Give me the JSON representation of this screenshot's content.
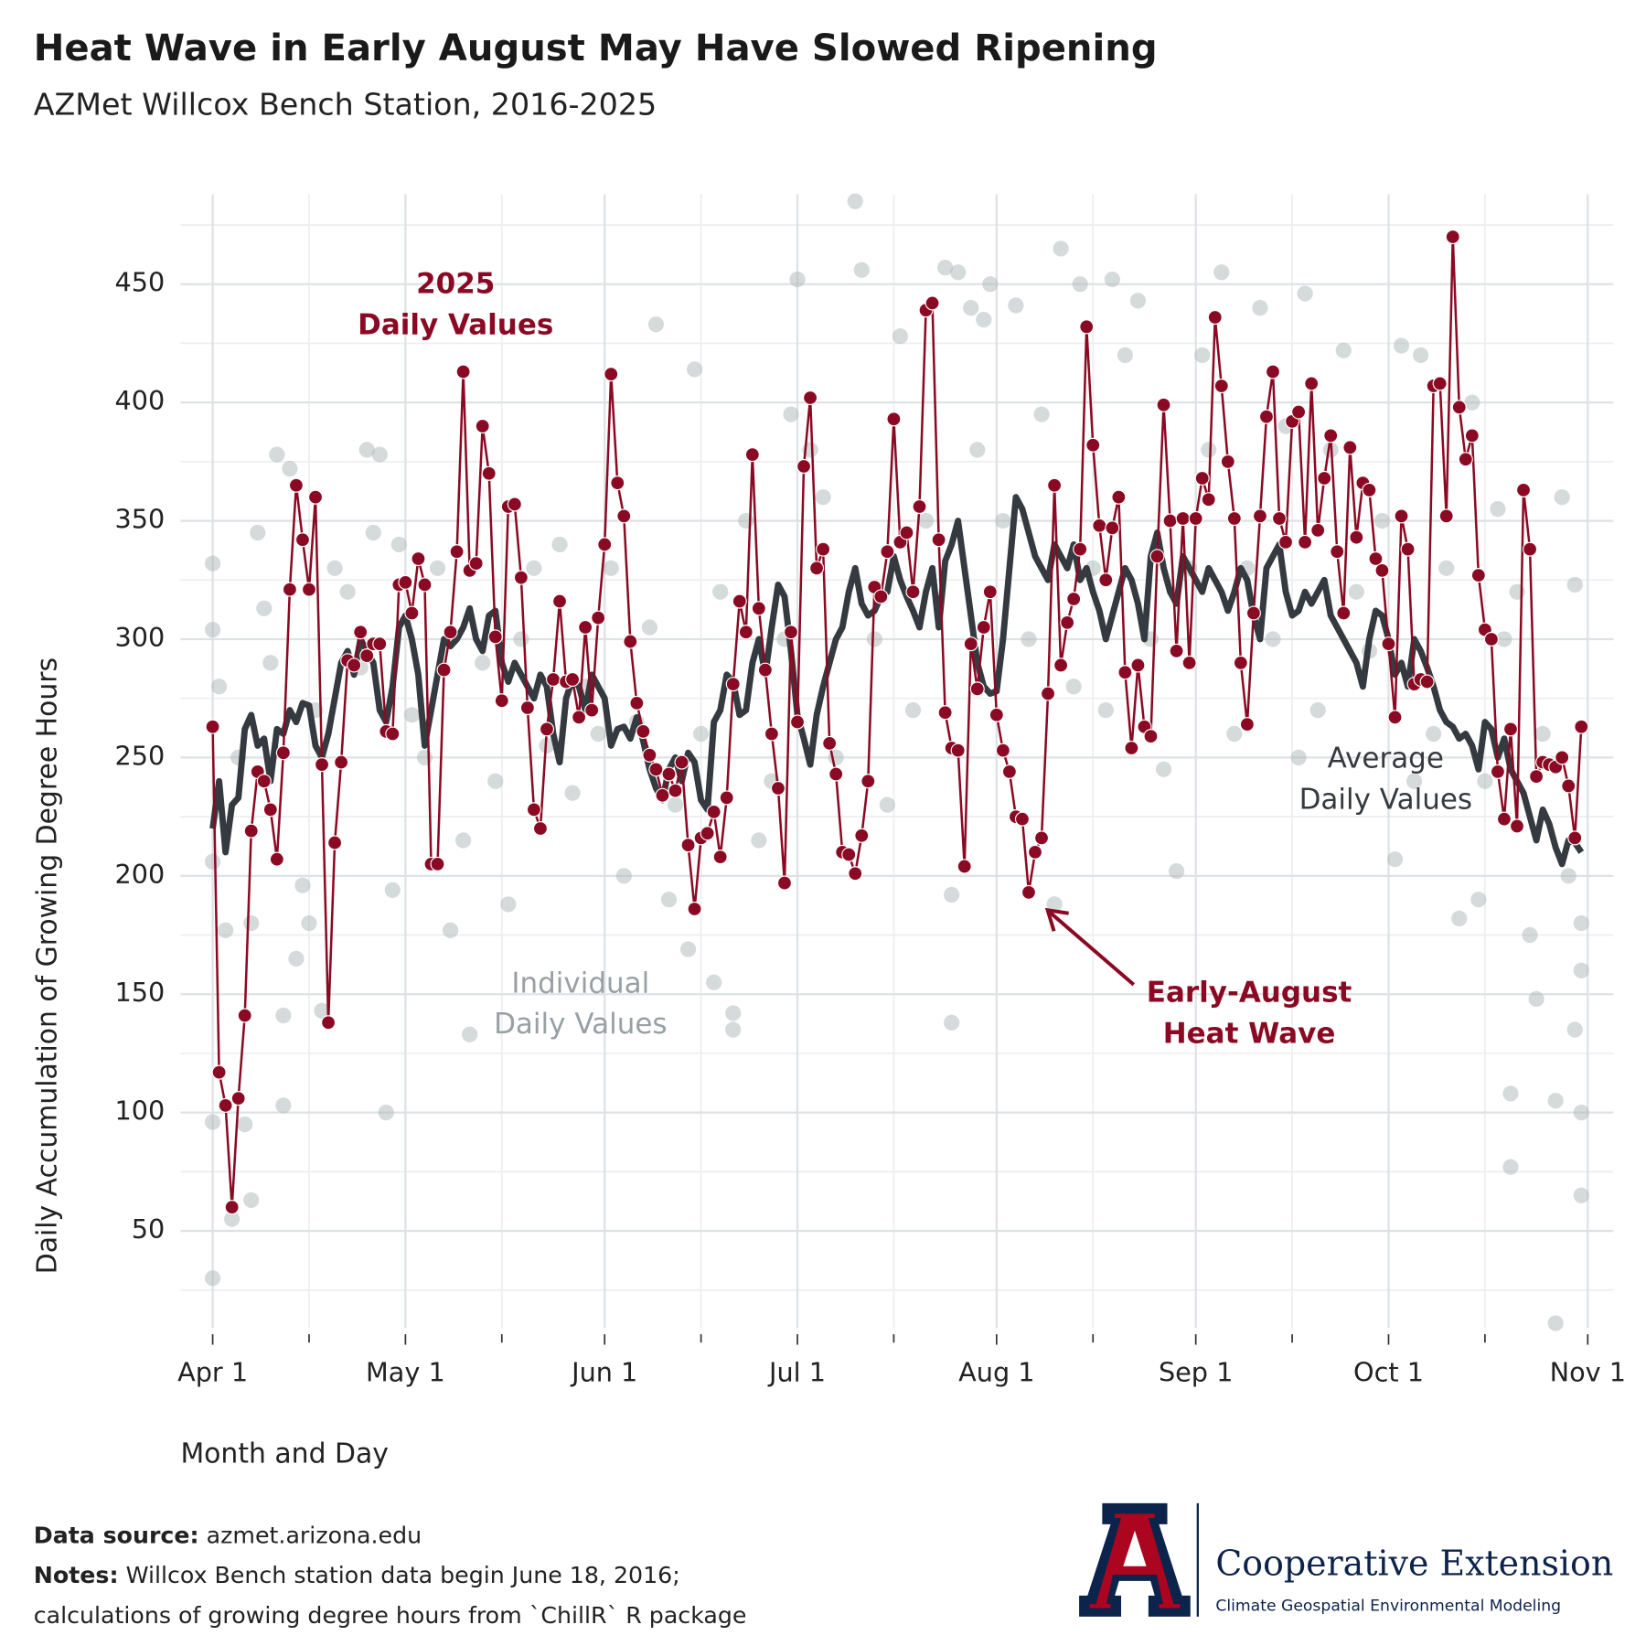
{
  "chart_data": {
    "type": "line",
    "title": "Heat Wave in Early August May Have Slowed Ripening",
    "subtitle": "AZMet Willcox Bench Station, 2016-2025",
    "x_label": "Month and Day",
    "y_label": "Daily Accumulation of Growing Degree Hours",
    "xlim": [
      -5,
      218
    ],
    "ylim": [
      9,
      488
    ],
    "xticks": [
      {
        "value": 0,
        "label": "Apr 1"
      },
      {
        "value": 30,
        "label": "May 1"
      },
      {
        "value": 61,
        "label": "Jun 1"
      },
      {
        "value": 91,
        "label": "Jul 1"
      },
      {
        "value": 122,
        "label": "Aug 1"
      },
      {
        "value": 153,
        "label": "Sep 1"
      },
      {
        "value": 183,
        "label": "Oct 1"
      },
      {
        "value": 214,
        "label": "Nov 1"
      }
    ],
    "xminorticks": [
      15,
      45,
      76,
      106,
      137,
      168,
      198
    ],
    "yticks": [
      50,
      100,
      150,
      200,
      250,
      300,
      350,
      400,
      450
    ],
    "yminorticks": [
      25,
      75,
      125,
      175,
      225,
      275,
      325,
      375,
      425,
      475
    ],
    "grid": true,
    "x": [
      0,
      1,
      2,
      3,
      4,
      5,
      6,
      7,
      8,
      9,
      10,
      11,
      12,
      13,
      14,
      15,
      16,
      17,
      18,
      19,
      20,
      21,
      22,
      23,
      24,
      25,
      26,
      27,
      28,
      29,
      30,
      31,
      32,
      33,
      34,
      35,
      36,
      37,
      38,
      39,
      40,
      41,
      42,
      43,
      44,
      45,
      46,
      47,
      48,
      49,
      50,
      51,
      52,
      53,
      54,
      55,
      56,
      57,
      58,
      59,
      60,
      61,
      62,
      63,
      64,
      65,
      66,
      67,
      68,
      69,
      70,
      71,
      72,
      73,
      74,
      75,
      76,
      77,
      78,
      79,
      80,
      81,
      82,
      83,
      84,
      85,
      86,
      87,
      88,
      89,
      90,
      91,
      92,
      93,
      94,
      95,
      96,
      97,
      98,
      99,
      100,
      101,
      102,
      103,
      104,
      105,
      106,
      107,
      108,
      109,
      110,
      111,
      112,
      113,
      114,
      115,
      116,
      117,
      118,
      119,
      120,
      121,
      122,
      123,
      124,
      125,
      126,
      127,
      128,
      129,
      130,
      131,
      132,
      133,
      134,
      135,
      136,
      137,
      138,
      139,
      140,
      141,
      142,
      143,
      144,
      145,
      146,
      147,
      148,
      149,
      150,
      151,
      152,
      153,
      154,
      155,
      156,
      157,
      158,
      159,
      160,
      161,
      162,
      163,
      164,
      165,
      166,
      167,
      168,
      169,
      170,
      171,
      172,
      173,
      174,
      175,
      176,
      177,
      178,
      179,
      180,
      181,
      182,
      183,
      184,
      185,
      186,
      187,
      188,
      189,
      190,
      191,
      192,
      193,
      194,
      195,
      196,
      197,
      198,
      199,
      200,
      201,
      202,
      203,
      204,
      205,
      206,
      207,
      208,
      209,
      210,
      211,
      212,
      213
    ],
    "series": [
      {
        "type": "scatter",
        "label": [
          "Individual",
          "Daily Values"
        ],
        "color": "#b3bcbc",
        "x": [
          0,
          0,
          0,
          0,
          0,
          1,
          2,
          3,
          4,
          5,
          6,
          6,
          7,
          8,
          9,
          10,
          11,
          11,
          12,
          13,
          14,
          15,
          16,
          17,
          19,
          21,
          23,
          24,
          25,
          26,
          27,
          28,
          29,
          31,
          33,
          35,
          37,
          39,
          40,
          42,
          44,
          46,
          48,
          50,
          52,
          54,
          56,
          58,
          60,
          62,
          64,
          66,
          68,
          69,
          71,
          72,
          74,
          75,
          76,
          78,
          79,
          81,
          81,
          83,
          85,
          87,
          89,
          90,
          91,
          93,
          95,
          97,
          100,
          101,
          103,
          105,
          107,
          109,
          111,
          114,
          115,
          115,
          116,
          118,
          119,
          120,
          121,
          123,
          125,
          127,
          129,
          131,
          132,
          134,
          135,
          137,
          139,
          140,
          142,
          144,
          146,
          148,
          150,
          152,
          154,
          155,
          157,
          159,
          161,
          163,
          165,
          167,
          169,
          170,
          172,
          174,
          176,
          178,
          180,
          182,
          184,
          185,
          187,
          188,
          190,
          192,
          194,
          196,
          197,
          198,
          200,
          201,
          202,
          202,
          203,
          205,
          206,
          207,
          209,
          210,
          211,
          212,
          212,
          213,
          213,
          209,
          213,
          213
        ],
        "values": [
          30,
          96,
          206,
          304,
          332,
          280,
          177,
          55,
          250,
          95,
          63,
          180,
          345,
          313,
          290,
          378,
          103,
          141,
          372,
          165,
          196,
          180,
          270,
          143,
          330,
          320,
          288,
          380,
          345,
          378,
          100,
          194,
          340,
          268,
          250,
          330,
          177,
          215,
          133,
          290,
          240,
          188,
          300,
          330,
          255,
          340,
          235,
          280,
          260,
          330,
          200,
          265,
          305,
          433,
          190,
          230,
          169,
          414,
          260,
          155,
          320,
          142,
          135,
          350,
          215,
          240,
          300,
          395,
          452,
          380,
          360,
          250,
          485,
          456,
          300,
          230,
          428,
          270,
          350,
          457,
          138,
          192,
          455,
          440,
          380,
          435,
          450,
          350,
          441,
          300,
          395,
          188,
          465,
          280,
          450,
          330,
          270,
          452,
          420,
          443,
          300,
          245,
          202,
          330,
          420,
          380,
          455,
          260,
          330,
          440,
          300,
          390,
          250,
          446,
          270,
          380,
          422,
          320,
          295,
          350,
          207,
          424,
          240,
          420,
          260,
          330,
          182,
          400,
          190,
          240,
          355,
          300,
          108,
          77,
          320,
          175,
          148,
          260,
          105,
          360,
          200,
          135,
          323,
          65,
          180,
          11,
          100,
          160
        ]
      },
      {
        "type": "line",
        "label": [
          "Average",
          "Daily Values"
        ],
        "color": "#343a40",
        "values": [
          220,
          240,
          210,
          230,
          233,
          262,
          268,
          255,
          258,
          240,
          262,
          260,
          270,
          265,
          273,
          272,
          255,
          250,
          260,
          275,
          290,
          295,
          285,
          300,
          295,
          290,
          270,
          265,
          280,
          305,
          310,
          300,
          285,
          255,
          270,
          285,
          300,
          297,
          300,
          305,
          313,
          300,
          295,
          310,
          312,
          290,
          282,
          290,
          285,
          280,
          275,
          285,
          280,
          260,
          248,
          275,
          283,
          280,
          270,
          285,
          280,
          275,
          255,
          262,
          263,
          258,
          267,
          257,
          245,
          237,
          232,
          245,
          250,
          240,
          252,
          248,
          232,
          228,
          265,
          270,
          285,
          282,
          268,
          270,
          290,
          300,
          285,
          305,
          323,
          318,
          295,
          268,
          258,
          247,
          268,
          280,
          290,
          300,
          305,
          320,
          330,
          315,
          310,
          312,
          318,
          320,
          335,
          325,
          318,
          312,
          305,
          320,
          330,
          305,
          333,
          340,
          350,
          330,
          310,
          290,
          280,
          277,
          278,
          300,
          330,
          360,
          355,
          345,
          335,
          330,
          325,
          340,
          335,
          330,
          340,
          325,
          330,
          320,
          312,
          300,
          310,
          320,
          330,
          325,
          315,
          300,
          335,
          345,
          330,
          320,
          315,
          335,
          330,
          325,
          320,
          330,
          325,
          320,
          312,
          320,
          330,
          325,
          310,
          300,
          330,
          335,
          340,
          320,
          310,
          312,
          320,
          315,
          320,
          325,
          310,
          305,
          300,
          295,
          290,
          280,
          300,
          312,
          310,
          300,
          285,
          290,
          280,
          300,
          295,
          288,
          280,
          270,
          265,
          263,
          258,
          260,
          255,
          245,
          265,
          262,
          250,
          258,
          245,
          240,
          235,
          225,
          215,
          228,
          222,
          212,
          205,
          215,
          214,
          210
        ]
      },
      {
        "type": "line",
        "markers": true,
        "label": [
          "2025",
          "Daily Values"
        ],
        "color": "#8b0a23",
        "values": [
          263,
          117,
          103,
          60,
          106,
          141,
          219,
          244,
          240,
          228,
          207,
          252,
          321,
          365,
          342,
          321,
          360,
          247,
          138,
          214,
          248,
          291,
          289,
          303,
          293,
          298,
          298,
          261,
          260,
          323,
          324,
          311,
          334,
          323,
          205,
          205,
          287,
          303,
          337,
          413,
          329,
          332,
          390,
          370,
          301,
          274,
          356,
          357,
          326,
          271,
          228,
          220,
          262,
          283,
          316,
          282,
          283,
          267,
          305,
          270,
          309,
          340,
          412,
          366,
          352,
          299,
          273,
          261,
          251,
          245,
          234,
          243,
          236,
          248,
          213,
          186,
          216,
          218,
          227,
          208,
          233,
          281,
          316,
          303,
          378,
          313,
          287,
          260,
          237,
          197,
          303,
          265,
          373,
          402,
          330,
          338,
          256,
          243,
          210,
          209,
          201,
          217,
          240,
          322,
          318,
          337,
          393,
          341,
          345,
          320,
          356,
          439,
          442,
          342,
          269,
          254,
          253,
          204,
          298,
          279,
          305,
          320,
          268,
          253,
          244,
          225,
          224,
          193,
          210,
          216,
          277,
          365,
          289,
          307,
          317,
          338,
          432,
          382,
          348,
          325,
          347,
          360,
          286,
          254,
          289,
          263,
          259,
          335,
          399,
          350,
          295,
          351,
          290,
          351,
          368,
          359,
          436,
          407,
          375,
          351,
          290,
          264,
          311,
          352,
          394,
          413,
          351,
          341,
          392,
          396,
          341,
          408,
          346,
          368,
          386,
          337,
          311,
          381,
          343,
          366,
          363,
          334,
          329,
          298,
          267,
          352,
          338,
          281,
          283,
          282,
          407,
          408,
          352,
          470,
          398,
          376,
          386,
          327,
          304,
          300,
          244,
          224,
          262,
          221,
          363,
          338,
          242,
          248,
          247,
          246,
          250,
          238,
          216,
          263
        ]
      }
    ],
    "annotations": [
      {
        "lines": [
          "Early-August",
          "Heat Wave"
        ]
      }
    ]
  },
  "footer": {
    "source_label": "Data source:",
    "source": "azmet.arizona.edu",
    "notes_label": "Notes:",
    "notes": [
      "Willcox Bench station data begin June 18, 2016;",
      "calculations of growing degree hours from `ChillR` R package"
    ]
  },
  "logo": {
    "name": "Cooperative Extension",
    "unit": "Climate Geospatial Environmental Modeling"
  }
}
